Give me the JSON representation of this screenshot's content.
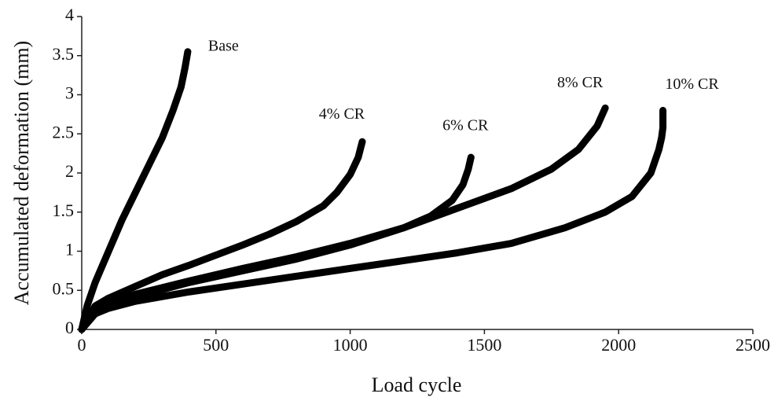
{
  "chart_data": {
    "type": "line",
    "xlabel": "Load cycle",
    "ylabel": "Accumulated deformation (mm)",
    "xlim": [
      0,
      2500
    ],
    "xticks": [
      0,
      500,
      1000,
      1500,
      2000,
      2500
    ],
    "ylim": [
      0,
      4
    ],
    "yticks": [
      0,
      0.5,
      1,
      1.5,
      2,
      2.5,
      3,
      3.5,
      4
    ],
    "series": [
      {
        "name": "Base",
        "color": "#000000",
        "x": [
          0,
          20,
          50,
          100,
          150,
          200,
          250,
          300,
          340,
          370,
          385,
          395
        ],
        "values": [
          0,
          0.3,
          0.6,
          1.0,
          1.4,
          1.75,
          2.1,
          2.45,
          2.8,
          3.1,
          3.35,
          3.55
        ]
      },
      {
        "name": "4% CR",
        "color": "#000000",
        "x": [
          0,
          50,
          100,
          200,
          300,
          400,
          500,
          600,
          700,
          800,
          900,
          950,
          1000,
          1030,
          1045
        ],
        "values": [
          0,
          0.3,
          0.4,
          0.55,
          0.7,
          0.82,
          0.95,
          1.08,
          1.22,
          1.38,
          1.58,
          1.75,
          1.98,
          2.2,
          2.4
        ]
      },
      {
        "name": "6% CR",
        "color": "#000000",
        "x": [
          0,
          50,
          100,
          200,
          400,
          600,
          800,
          1000,
          1200,
          1300,
          1380,
          1420,
          1440,
          1450
        ],
        "values": [
          0,
          0.25,
          0.33,
          0.45,
          0.62,
          0.78,
          0.93,
          1.1,
          1.3,
          1.45,
          1.65,
          1.85,
          2.05,
          2.2
        ]
      },
      {
        "name": "8% CR",
        "color": "#000000",
        "x": [
          0,
          50,
          100,
          200,
          400,
          600,
          800,
          1000,
          1200,
          1400,
          1600,
          1750,
          1850,
          1920,
          1950
        ],
        "values": [
          0,
          0.22,
          0.3,
          0.42,
          0.6,
          0.75,
          0.9,
          1.08,
          1.3,
          1.55,
          1.8,
          2.05,
          2.3,
          2.6,
          2.83
        ]
      },
      {
        "name": "10% CR",
        "color": "#000000",
        "x": [
          0,
          50,
          100,
          200,
          400,
          600,
          800,
          1000,
          1200,
          1400,
          1600,
          1800,
          1950,
          2050,
          2120,
          2150,
          2160,
          2165,
          2165
        ],
        "values": [
          0,
          0.2,
          0.27,
          0.36,
          0.48,
          0.58,
          0.68,
          0.78,
          0.88,
          0.98,
          1.1,
          1.3,
          1.5,
          1.7,
          2.0,
          2.3,
          2.45,
          2.58,
          2.8
        ]
      }
    ]
  }
}
